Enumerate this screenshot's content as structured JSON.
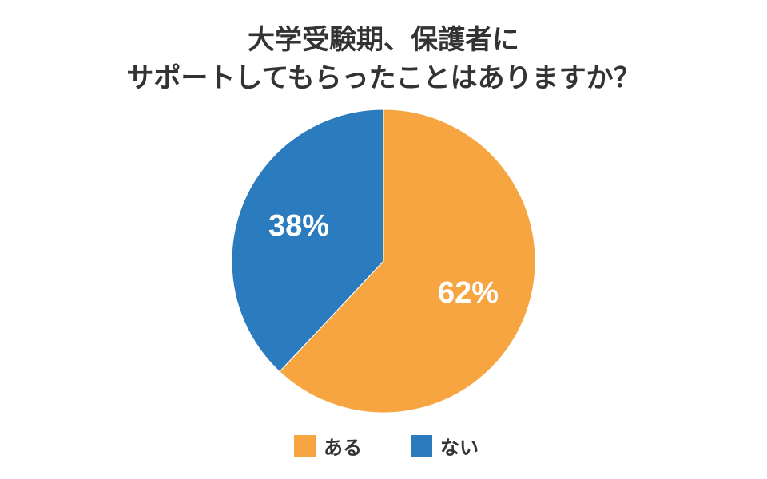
{
  "title_lines": [
    "大学受験期、保護者に",
    "サポートしてもらったことはありますか？"
  ],
  "chart_data": {
    "type": "pie",
    "title": "大学受験期、保護者に サポートしてもらったことはありますか？",
    "slices": [
      {
        "label": "ある",
        "value": 62,
        "display": "62%",
        "color": "#F7A541"
      },
      {
        "label": "ない",
        "value": 38,
        "display": "38%",
        "color": "#2B7BBF"
      }
    ],
    "start_angle_deg": 0,
    "direction": "clockwise",
    "legend": "bottom-center"
  }
}
